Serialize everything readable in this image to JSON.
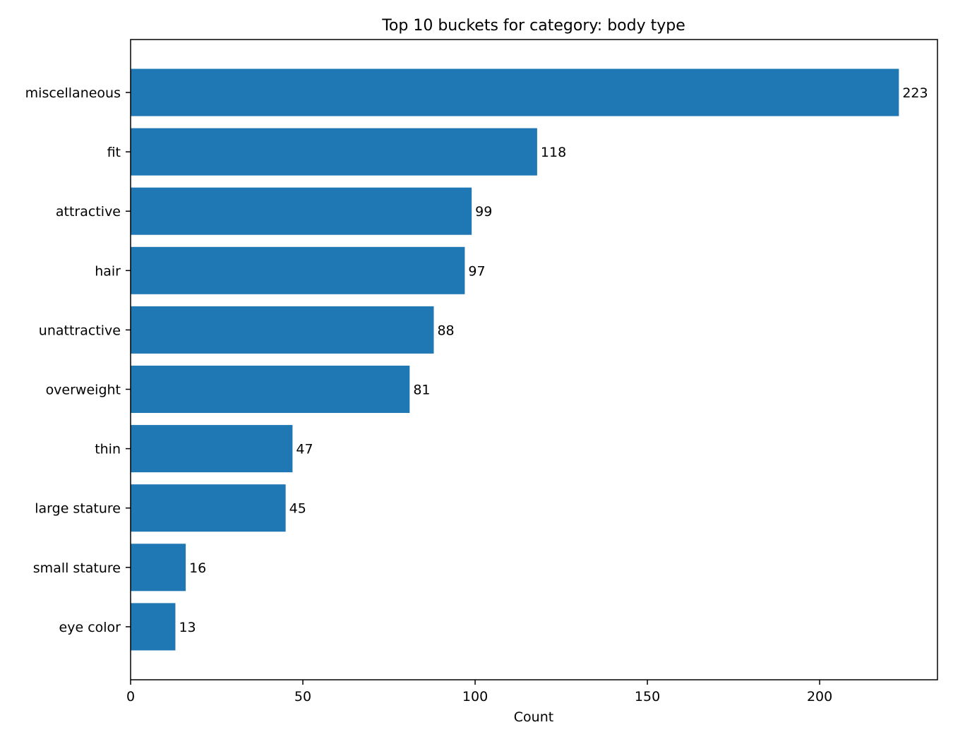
{
  "chart_data": {
    "type": "bar",
    "orientation": "horizontal",
    "title": "Top 10 buckets for category: body type",
    "xlabel": "Count",
    "ylabel": "",
    "categories": [
      "miscellaneous",
      "fit",
      "attractive",
      "hair",
      "unattractive",
      "overweight",
      "thin",
      "large stature",
      "small stature",
      "eye color"
    ],
    "values": [
      223,
      118,
      99,
      97,
      88,
      81,
      47,
      45,
      16,
      13
    ],
    "xlim": [
      0,
      234.2
    ],
    "xticks": [
      0,
      50,
      100,
      150,
      200
    ],
    "grid": false,
    "legend": "none",
    "bar_color": "#1f77b4",
    "value_labels": true
  }
}
